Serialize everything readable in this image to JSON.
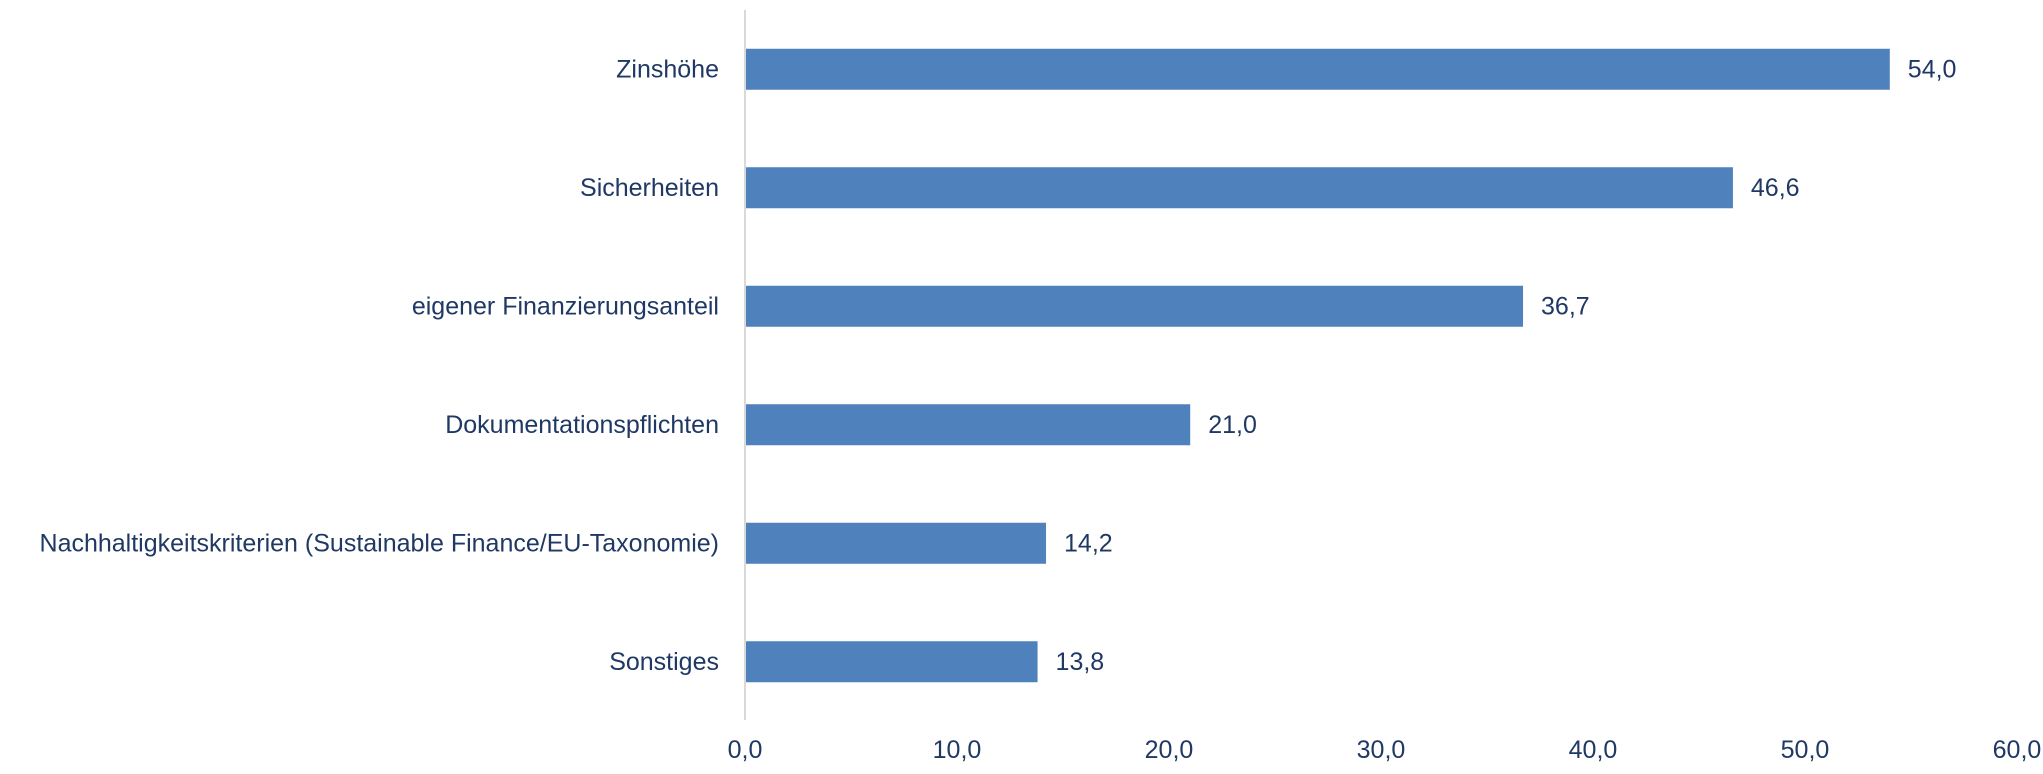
{
  "chart_data": {
    "type": "bar",
    "orientation": "horizontal",
    "categories": [
      "Zinshöhe",
      "Sicherheiten",
      "eigener Finanzierungsanteil",
      "Dokumentationspflichten",
      "Nachhaltigkeitskriterien (Sustainable Finance/EU-Taxonomie)",
      "Sonstiges"
    ],
    "values": [
      54.0,
      46.6,
      36.7,
      21.0,
      14.2,
      13.8
    ],
    "value_labels": [
      "54,0",
      "46,6",
      "36,7",
      "21,0",
      "14,2",
      "13,8"
    ],
    "title": "",
    "xlabel": "",
    "ylabel": "",
    "xlim": [
      0,
      60
    ],
    "x_ticks": [
      0,
      10,
      20,
      30,
      40,
      50,
      60
    ],
    "x_tick_labels": [
      "0,0",
      "10,0",
      "20,0",
      "30,0",
      "40,0",
      "50,0",
      "60,0"
    ],
    "grid": false,
    "legend": "none",
    "colors": {
      "bar": "#4F81BD",
      "text": "#1F3864",
      "axis": "#D9D9D9"
    }
  }
}
